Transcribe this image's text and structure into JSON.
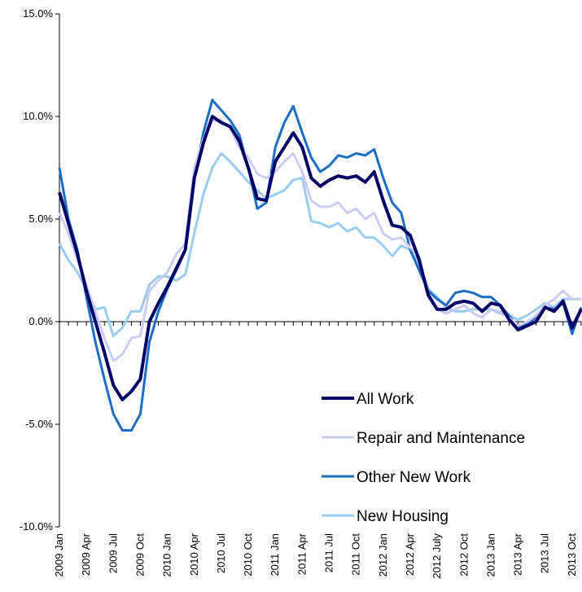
{
  "chart_data": {
    "type": "line",
    "categories": [
      "2009 Jan",
      null,
      null,
      "2009 Apr",
      null,
      null,
      "2009 Jul",
      null,
      null,
      "2009 Oct",
      null,
      null,
      "2010 Jan",
      null,
      null,
      "2010 Apr",
      null,
      null,
      "2010 Jul",
      null,
      null,
      "2010 Oct",
      null,
      null,
      "2011 Jan",
      null,
      null,
      "2011 Apr",
      null,
      null,
      "2011 Jul",
      null,
      null,
      "2011 Oct",
      null,
      null,
      "2012 Jan",
      null,
      null,
      "2012 Apr",
      null,
      null,
      "2012 July",
      null,
      null,
      "2012 Oct",
      null,
      null,
      "2013 Jan",
      null,
      null,
      "2013 Apr",
      null,
      null,
      "2013 Jul",
      null,
      null,
      "2013 Oct",
      null
    ],
    "series": [
      {
        "name": "All Work",
        "color": "#000066",
        "values": [
          6.3,
          4.8,
          3.3,
          1.5,
          0.0,
          -1.5,
          -3.1,
          -3.8,
          -3.4,
          -2.8,
          0.0,
          0.9,
          1.7,
          2.6,
          3.5,
          7.0,
          8.7,
          10.0,
          9.7,
          9.5,
          8.8,
          7.5,
          6.0,
          5.9,
          7.8,
          8.5,
          9.2,
          8.5,
          7.0,
          6.6,
          6.9,
          7.1,
          7.0,
          7.1,
          6.8,
          7.3,
          5.9,
          4.7,
          4.6,
          4.2,
          3.0,
          1.3,
          0.6,
          0.6,
          0.9,
          1.0,
          0.9,
          0.5,
          0.9,
          0.8,
          0.1,
          -0.4,
          -0.2,
          0.0,
          0.7,
          0.5,
          1.0,
          -0.3,
          0.6
        ]
      },
      {
        "name": "Repair and Maintenance",
        "color": "#ccccf2",
        "values": [
          5.3,
          4.3,
          3.0,
          1.8,
          0.5,
          -0.8,
          -1.9,
          -1.6,
          -0.8,
          -0.7,
          1.5,
          2.0,
          2.4,
          3.3,
          3.8,
          7.5,
          8.9,
          9.8,
          9.8,
          9.4,
          8.5,
          8.0,
          7.2,
          7.0,
          7.3,
          7.8,
          8.2,
          7.3,
          5.9,
          5.6,
          5.6,
          5.8,
          5.3,
          5.5,
          5.0,
          5.3,
          4.3,
          4.0,
          4.1,
          3.6,
          3.2,
          1.2,
          0.6,
          0.4,
          0.6,
          0.8,
          0.4,
          0.2,
          0.6,
          0.5,
          0.2,
          -0.2,
          0.0,
          0.3,
          0.8,
          1.1,
          1.5,
          1.1,
          1.1
        ]
      },
      {
        "name": "Other New Work",
        "color": "#1a6fc4",
        "values": [
          7.5,
          5.0,
          3.5,
          1.2,
          -1.0,
          -2.8,
          -4.5,
          -5.3,
          -5.3,
          -4.5,
          -1.0,
          0.5,
          1.6,
          2.5,
          3.5,
          7.0,
          9.2,
          10.8,
          10.3,
          9.8,
          9.1,
          7.5,
          5.5,
          5.8,
          8.5,
          9.7,
          10.5,
          9.2,
          8.0,
          7.3,
          7.6,
          8.1,
          8.0,
          8.2,
          8.1,
          8.4,
          7.0,
          5.8,
          5.3,
          3.5,
          2.5,
          1.5,
          1.1,
          0.8,
          1.4,
          1.5,
          1.4,
          1.2,
          1.2,
          0.8,
          0.3,
          -0.3,
          -0.1,
          0.2,
          0.7,
          0.6,
          0.9,
          -0.6,
          0.7
        ]
      },
      {
        "name": "New Housing",
        "color": "#99ccf0",
        "values": [
          3.8,
          3.0,
          2.4,
          1.6,
          0.6,
          0.7,
          -0.7,
          -0.3,
          0.5,
          0.5,
          1.8,
          2.2,
          2.2,
          2.0,
          2.3,
          4.3,
          6.2,
          7.5,
          8.2,
          7.8,
          7.3,
          6.8,
          6.4,
          6.0,
          6.2,
          6.4,
          6.9,
          7.0,
          4.9,
          4.8,
          4.6,
          4.8,
          4.4,
          4.6,
          4.1,
          4.1,
          3.7,
          3.2,
          3.7,
          3.5,
          2.8,
          1.6,
          1.2,
          0.7,
          0.5,
          0.5,
          0.6,
          0.6,
          0.6,
          0.4,
          0.3,
          0.1,
          0.3,
          0.6,
          0.9,
          0.7,
          1.1,
          1.1,
          1.1
        ]
      }
    ],
    "ylim": [
      -10,
      15
    ],
    "yticks": [
      {
        "value": -10,
        "label": "-10.0%"
      },
      {
        "value": -5,
        "label": "-5.0%"
      },
      {
        "value": 0,
        "label": "0.0%"
      },
      {
        "value": 5,
        "label": "5.0%"
      },
      {
        "value": 10,
        "label": "10.0%"
      },
      {
        "value": 15,
        "label": "15.0%"
      }
    ],
    "legend": "lower right"
  }
}
